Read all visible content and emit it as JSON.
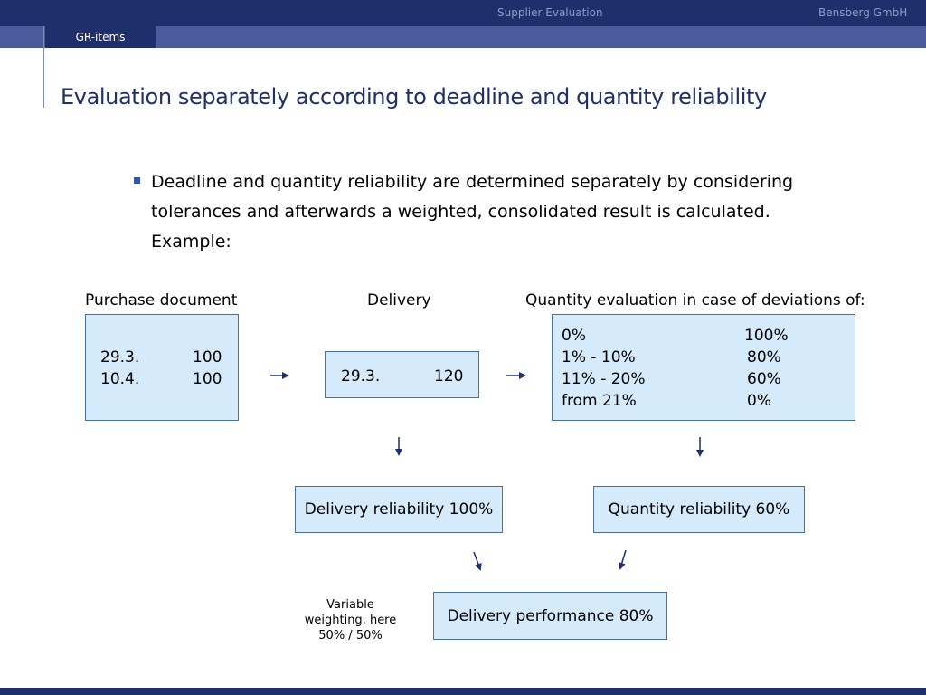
{
  "header": {
    "center_title": "Supplier Evaluation",
    "company": "Bensberg GmbH",
    "tab": "GR-items"
  },
  "slide": {
    "title": "Evaluation separately according to deadline and quantity reliability",
    "bullet_lines": [
      "Deadline and quantity reliability are determined separately by considering",
      "tolerances and afterwards a weighted, consolidated result is calculated.",
      "Example:"
    ]
  },
  "diagram": {
    "purchase_document": {
      "label": "Purchase document",
      "rows": [
        {
          "date": "29.3.",
          "qty": "100"
        },
        {
          "date": "10.4.",
          "qty": "100"
        }
      ]
    },
    "delivery": {
      "label": "Delivery",
      "rows": [
        {
          "date": "29.3.",
          "qty": "120"
        }
      ]
    },
    "quantity_evaluation": {
      "label": "Quantity evaluation in case of deviations of:",
      "rows": [
        {
          "deviation": "0%",
          "score": "100%"
        },
        {
          "deviation": "1% - 10%",
          "score": "80%"
        },
        {
          "deviation": "11% - 20%",
          "score": "60%"
        },
        {
          "deviation": "from 21%",
          "score": "0%"
        }
      ]
    },
    "delivery_reliability": "Delivery reliability 100%",
    "quantity_reliability": "Quantity reliability 60%",
    "delivery_performance": "Delivery performance 80%",
    "weighting_note": [
      "Variable",
      "weighting, here",
      "50% / 50%"
    ]
  },
  "colors": {
    "navy": "#1e2f6b",
    "subbar": "#4a5a9a",
    "box_fill": "#d5ebfb",
    "box_border": "#4a6fa5",
    "arrow": "#1e2f6b"
  }
}
